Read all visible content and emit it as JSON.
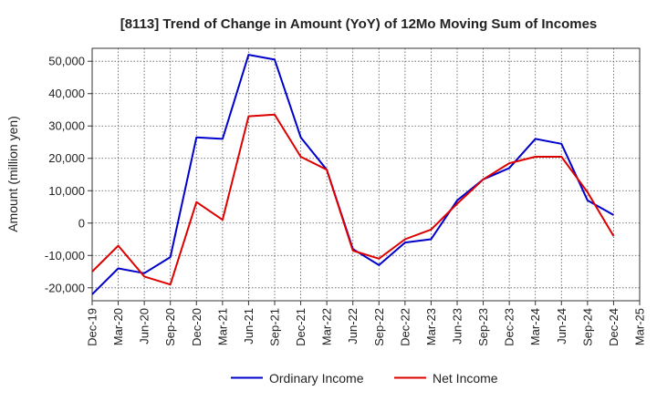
{
  "chart_data": {
    "type": "line",
    "title": "[8113]  Trend of Change in Amount (YoY) of 12Mo Moving Sum of Incomes",
    "xlabel": "",
    "ylabel": "Amount (million yen)",
    "ylim": [
      -24000,
      54000
    ],
    "yticks": [
      -20000,
      -10000,
      0,
      10000,
      20000,
      30000,
      40000,
      50000
    ],
    "ytick_labels": [
      "-20,000",
      "-10,000",
      "0",
      "10,000",
      "20,000",
      "30,000",
      "40,000",
      "50,000"
    ],
    "xtick_labels": [
      "Dec-19",
      "Mar-20",
      "Jun-20",
      "Sep-20",
      "Dec-20",
      "Mar-21",
      "Jun-21",
      "Sep-21",
      "Dec-21",
      "Mar-22",
      "Jun-22",
      "Sep-22",
      "Dec-22",
      "Mar-23",
      "Jun-23",
      "Sep-23",
      "Dec-23",
      "Mar-24",
      "Jun-24",
      "Sep-24",
      "Dec-24",
      "Mar-25"
    ],
    "grid": true,
    "legend_position": "bottom",
    "series": [
      {
        "name": "Ordinary Income",
        "color": "#0000cc",
        "values": [
          -22000,
          -14000,
          -15500,
          -10500,
          26500,
          26000,
          52000,
          50500,
          26500,
          16500,
          -8000,
          -13000,
          -6000,
          -5000,
          7000,
          13500,
          17000,
          26000,
          24500,
          7000,
          2500,
          null
        ]
      },
      {
        "name": "Net Income",
        "color": "#dd0000",
        "values": [
          -15000,
          -7000,
          -16500,
          -19000,
          6500,
          1000,
          33000,
          33500,
          20500,
          16500,
          -8500,
          -11000,
          -5000,
          -2000,
          6000,
          13500,
          18500,
          20500,
          20500,
          9500,
          -4000,
          null
        ]
      }
    ]
  }
}
